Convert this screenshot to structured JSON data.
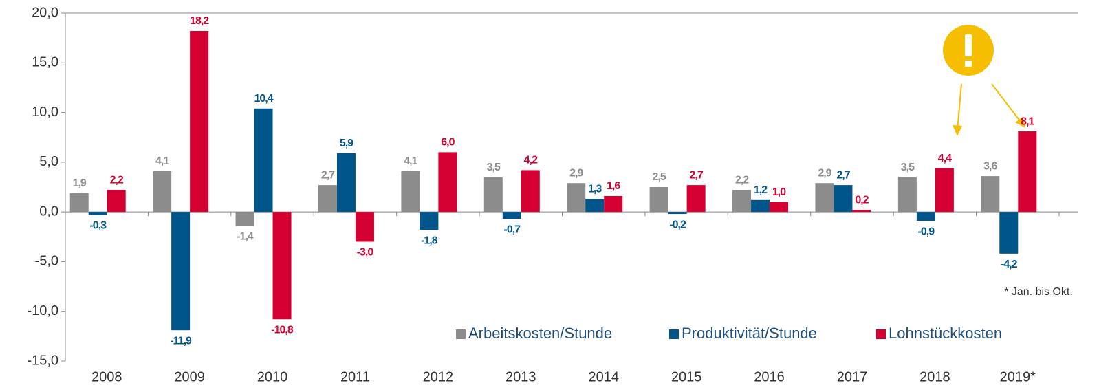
{
  "chart_data": {
    "type": "bar",
    "categories": [
      "2008",
      "2009",
      "2010",
      "2011",
      "2012",
      "2013",
      "2014",
      "2015",
      "2016",
      "2017",
      "2018",
      "2019*"
    ],
    "series": [
      {
        "name": "Arbeitskosten/Stunde",
        "color": "#8c8c8c",
        "values": [
          1.9,
          4.1,
          -1.4,
          2.7,
          4.1,
          3.5,
          2.9,
          2.5,
          2.2,
          2.9,
          3.5,
          3.6
        ],
        "value_labels": [
          "1,9",
          "4,1",
          "-1,4",
          "2,7",
          "4,1",
          "3,5",
          "2,9",
          "2,5",
          "2,2",
          "2,9",
          "3,5",
          "3,6"
        ]
      },
      {
        "name": "Produktivität/Stunde",
        "color": "#00568b",
        "values": [
          -0.3,
          -11.9,
          10.4,
          5.9,
          -1.8,
          -0.7,
          1.3,
          -0.2,
          1.2,
          2.7,
          -0.9,
          -4.2
        ],
        "value_labels": [
          "-0,3",
          "-11,9",
          "10,4",
          "5,9",
          "-1,8",
          "-0,7",
          "1,3",
          "-0,2",
          "1,2",
          "2,7",
          "-0,9",
          "-4,2"
        ]
      },
      {
        "name": "Lohnstückkosten",
        "color": "#d50032",
        "values": [
          2.2,
          18.2,
          -10.8,
          -3.0,
          6.0,
          4.2,
          1.6,
          2.7,
          1.0,
          0.2,
          4.4,
          8.1
        ],
        "value_labels": [
          "2,2",
          "18,2",
          "-10,8",
          "-3,0",
          "6,0",
          "4,2",
          "1,6",
          "2,7",
          "1,0",
          "0,2",
          "4,4",
          "8,1"
        ]
      }
    ],
    "ylim": [
      -15,
      20
    ],
    "yticks": [
      {
        "value": -15,
        "label": "-15,0"
      },
      {
        "value": -10,
        "label": "-10,0"
      },
      {
        "value": -5,
        "label": "-5,0"
      },
      {
        "value": 0,
        "label": "0,0"
      },
      {
        "value": 5,
        "label": "5,0"
      },
      {
        "value": 10,
        "label": "10,0"
      },
      {
        "value": 15,
        "label": "15,0"
      },
      {
        "value": 20,
        "label": "20,0"
      }
    ],
    "grid": false,
    "legend": "bottom-right",
    "annotations": [
      "* Jan. bis Okt."
    ]
  }
}
